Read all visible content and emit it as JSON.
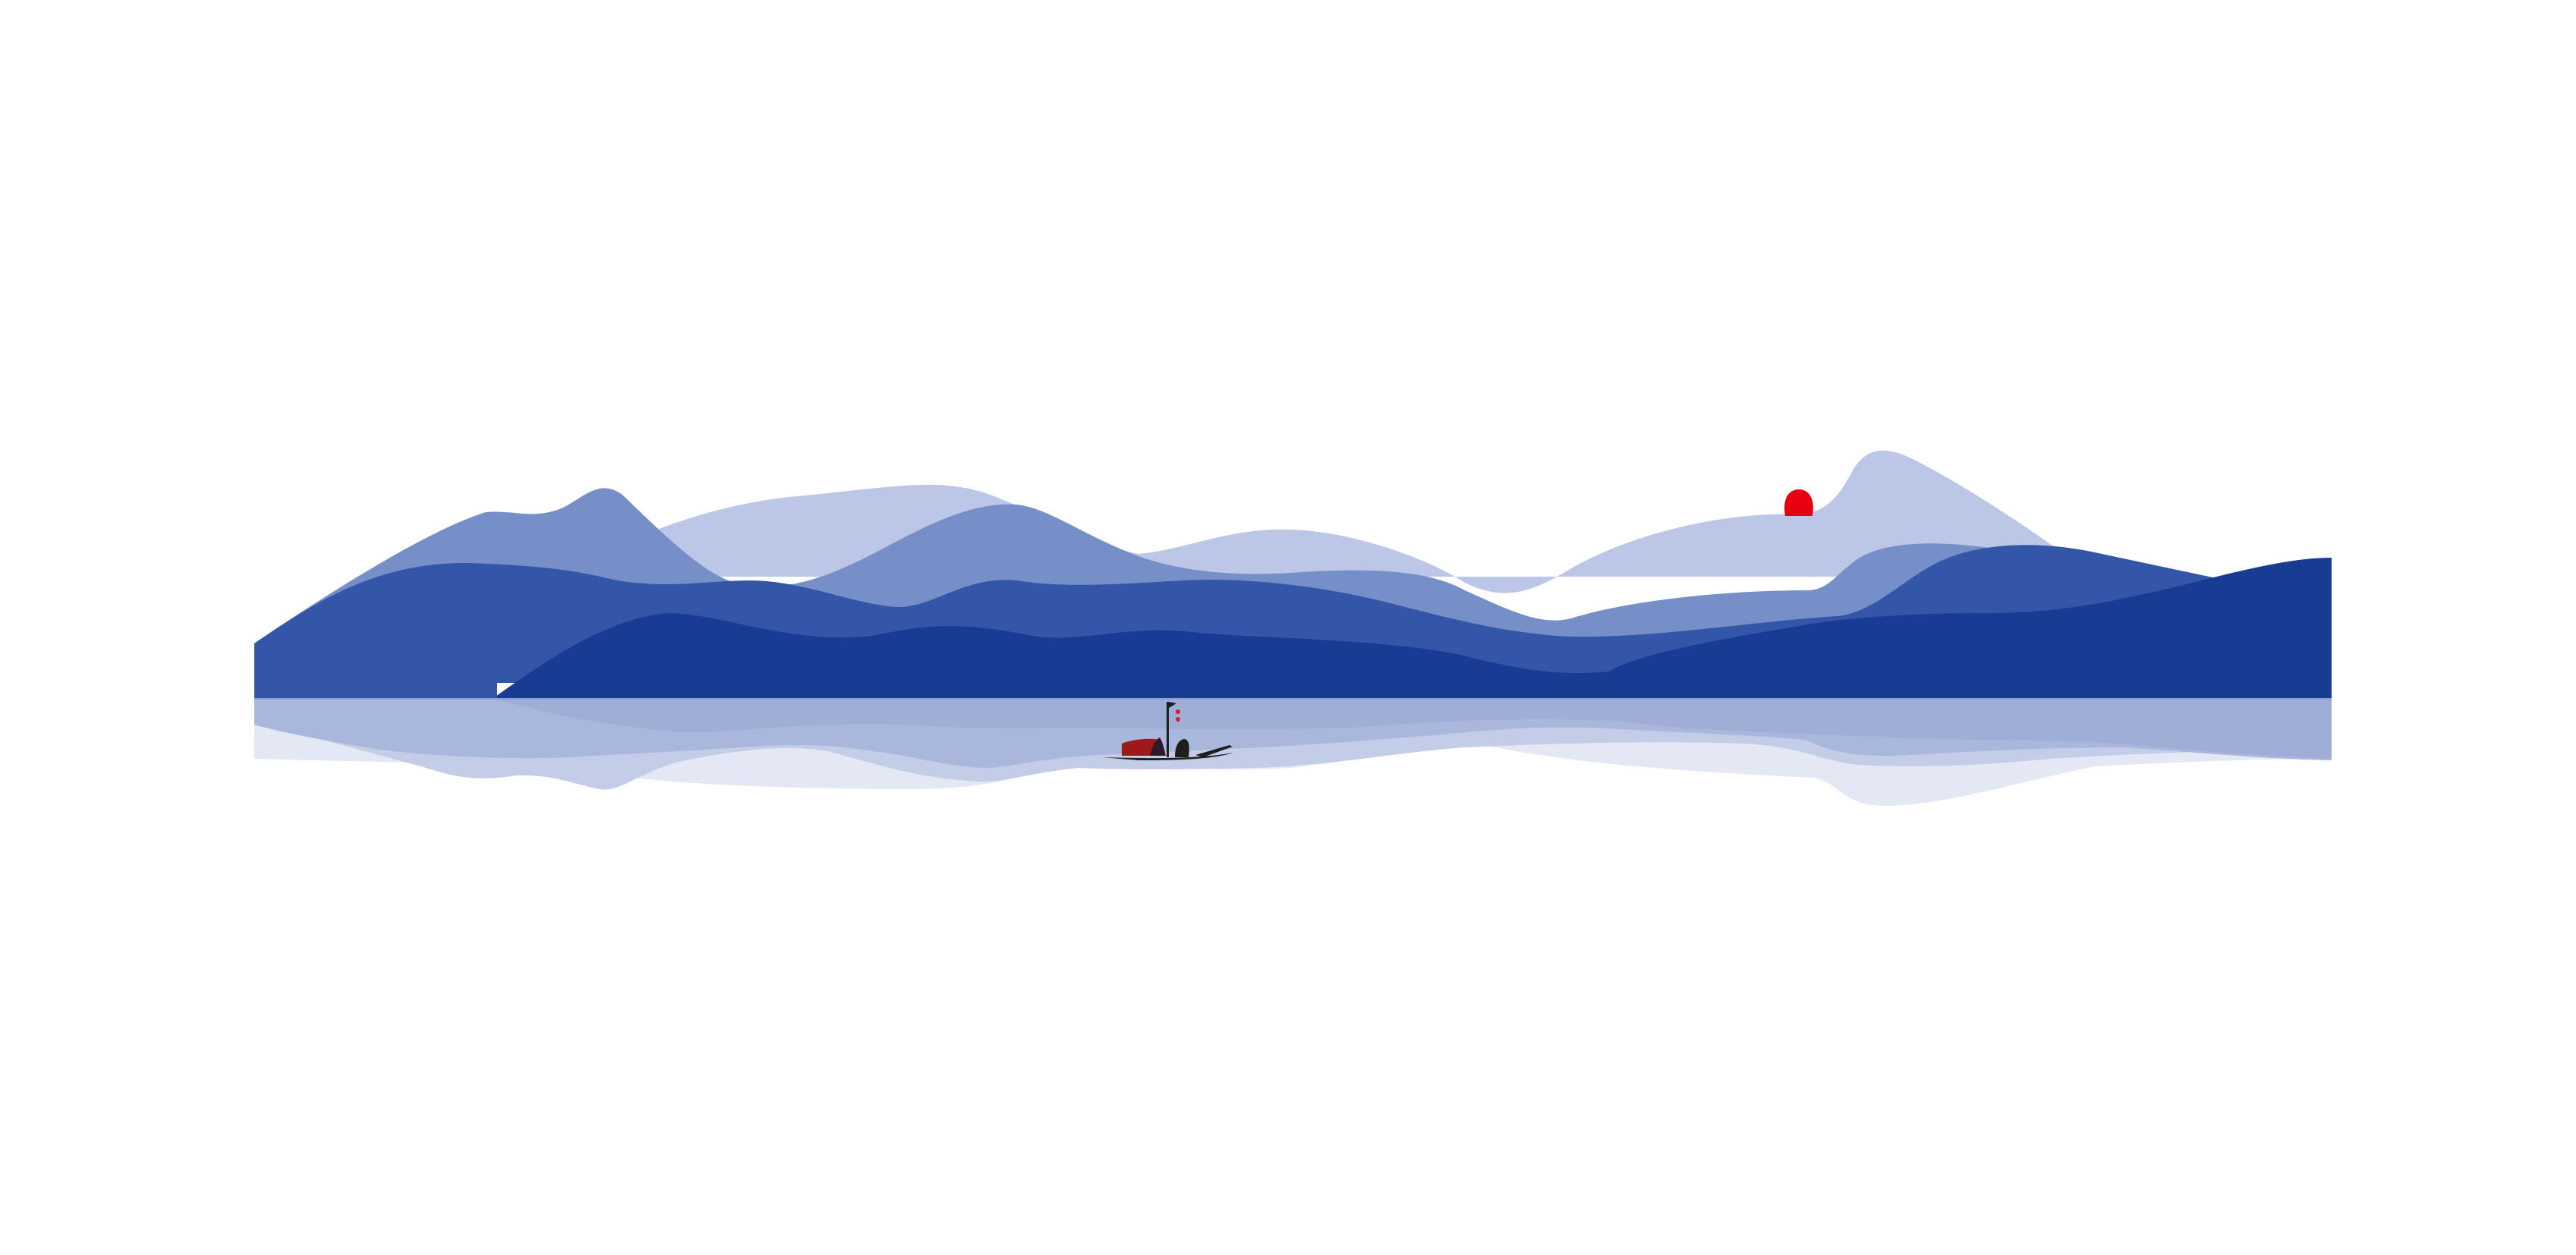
{
  "scene": {
    "background_color": "#ffffff",
    "palette": {
      "mountain_far": "#bcc6e6",
      "mountain_mid": "#768fc9",
      "mountain_near": "#3456a8",
      "mountain_front": "#183c93",
      "reflection_light": "#e4e8f4",
      "reflection_mid": "#c4cde8",
      "reflection_deep": "#a4b2da",
      "sun": "#e60012",
      "boat_cabin": "#9e1a1a",
      "boat_hull": "#1e1e1e",
      "lantern": "#d0202a"
    },
    "elements": [
      "far-mountain-range",
      "mid-mountain-range",
      "near-mountain-range",
      "front-mountain-range",
      "setting-sun",
      "lake-reflection",
      "fishing-boat"
    ]
  }
}
